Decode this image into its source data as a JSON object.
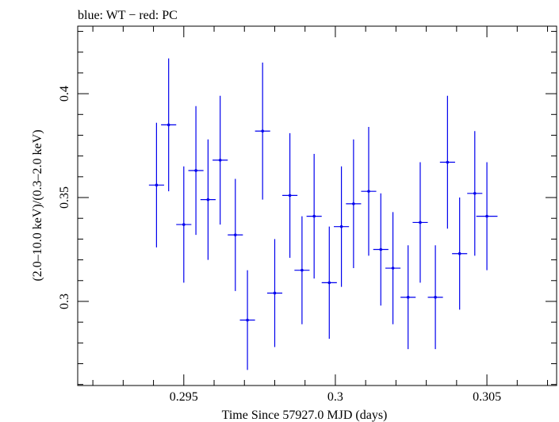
{
  "chart_data": {
    "type": "scatter",
    "title": "blue: WT − red: PC",
    "xlabel": "Time Since 57927.0 MJD (days)",
    "ylabel": "(2.0–10.0 keV)/(0.3–2.0 keV)",
    "xlim": [
      0.2915,
      0.3073
    ],
    "ylim": [
      0.2595,
      0.4325
    ],
    "xticks": [
      {
        "value": 0.295,
        "label": "0.295"
      },
      {
        "value": 0.3,
        "label": "0.3"
      },
      {
        "value": 0.305,
        "label": "0.305"
      }
    ],
    "yticks": [
      {
        "value": 0.3,
        "label": "0.3"
      },
      {
        "value": 0.35,
        "label": "0.35"
      },
      {
        "value": 0.4,
        "label": "0.4"
      }
    ],
    "grid": false,
    "series": [
      {
        "name": "WT",
        "color": "#0000ee",
        "points": [
          {
            "x": 0.2941,
            "xerr": 0.00025,
            "y": 0.356,
            "yerr": 0.03
          },
          {
            "x": 0.2945,
            "xerr": 0.00025,
            "y": 0.385,
            "yerr": 0.032
          },
          {
            "x": 0.295,
            "xerr": 0.00025,
            "y": 0.337,
            "yerr": 0.028
          },
          {
            "x": 0.2954,
            "xerr": 0.00025,
            "y": 0.363,
            "yerr": 0.031
          },
          {
            "x": 0.2958,
            "xerr": 0.00025,
            "y": 0.349,
            "yerr": 0.029
          },
          {
            "x": 0.2962,
            "xerr": 0.00025,
            "y": 0.368,
            "yerr": 0.031
          },
          {
            "x": 0.2967,
            "xerr": 0.00025,
            "y": 0.332,
            "yerr": 0.027
          },
          {
            "x": 0.2971,
            "xerr": 0.00025,
            "y": 0.291,
            "yerr": 0.024
          },
          {
            "x": 0.2976,
            "xerr": 0.00025,
            "y": 0.382,
            "yerr": 0.033
          },
          {
            "x": 0.298,
            "xerr": 0.00025,
            "y": 0.304,
            "yerr": 0.026
          },
          {
            "x": 0.2985,
            "xerr": 0.00025,
            "y": 0.351,
            "yerr": 0.03
          },
          {
            "x": 0.2989,
            "xerr": 0.00025,
            "y": 0.315,
            "yerr": 0.026
          },
          {
            "x": 0.2993,
            "xerr": 0.00025,
            "y": 0.341,
            "yerr": 0.03
          },
          {
            "x": 0.2998,
            "xerr": 0.00025,
            "y": 0.309,
            "yerr": 0.027
          },
          {
            "x": 0.3002,
            "xerr": 0.00025,
            "y": 0.336,
            "yerr": 0.029
          },
          {
            "x": 0.3006,
            "xerr": 0.00025,
            "y": 0.347,
            "yerr": 0.031
          },
          {
            "x": 0.3011,
            "xerr": 0.00025,
            "y": 0.353,
            "yerr": 0.031
          },
          {
            "x": 0.3015,
            "xerr": 0.00025,
            "y": 0.325,
            "yerr": 0.027
          },
          {
            "x": 0.3019,
            "xerr": 0.00025,
            "y": 0.316,
            "yerr": 0.027
          },
          {
            "x": 0.3024,
            "xerr": 0.00025,
            "y": 0.302,
            "yerr": 0.025
          },
          {
            "x": 0.3028,
            "xerr": 0.00025,
            "y": 0.338,
            "yerr": 0.029
          },
          {
            "x": 0.3033,
            "xerr": 0.00025,
            "y": 0.302,
            "yerr": 0.025
          },
          {
            "x": 0.3037,
            "xerr": 0.00025,
            "y": 0.367,
            "yerr": 0.032
          },
          {
            "x": 0.3041,
            "xerr": 0.00025,
            "y": 0.323,
            "yerr": 0.027
          },
          {
            "x": 0.3046,
            "xerr": 0.00025,
            "y": 0.352,
            "yerr": 0.03
          },
          {
            "x": 0.305,
            "xerr": 0.00035,
            "y": 0.341,
            "yerr": 0.026
          }
        ]
      }
    ]
  }
}
